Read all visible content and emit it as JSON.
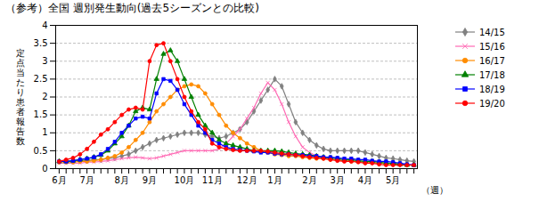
{
  "chart_data": {
    "type": "line",
    "title": "（参考）全国 週別発生動向(過去5シーズンとの比較)",
    "ylabel": "定点当たり患者報告数",
    "xlabel": "（週）",
    "categories": [
      "6月",
      null,
      null,
      null,
      "7月",
      null,
      null,
      null,
      null,
      "8月",
      null,
      null,
      null,
      "9月",
      null,
      null,
      null,
      null,
      "10月",
      null,
      null,
      null,
      "11月",
      null,
      null,
      null,
      null,
      "12月",
      null,
      null,
      null,
      "1月",
      null,
      null,
      null,
      null,
      "2月",
      null,
      null,
      null,
      "3月",
      null,
      null,
      null,
      "4月",
      null,
      null,
      null,
      "5月",
      null,
      null,
      null
    ],
    "ylim": [
      0,
      4
    ],
    "yticks": [
      0,
      0.5,
      1,
      1.5,
      2,
      2.5,
      3,
      3.5,
      4
    ],
    "grid": true,
    "legend": "right",
    "series": [
      {
        "name": "14/15",
        "color": "#808080",
        "marker": "diamond",
        "values": [
          0.2,
          0.2,
          0.2,
          0.22,
          0.22,
          0.25,
          0.25,
          0.28,
          0.3,
          0.35,
          0.4,
          0.5,
          0.6,
          0.7,
          0.8,
          0.85,
          0.9,
          0.95,
          1.0,
          1.0,
          1.0,
          0.95,
          0.9,
          0.85,
          0.9,
          1.0,
          1.1,
          1.3,
          1.6,
          1.9,
          2.2,
          2.5,
          2.3,
          1.8,
          1.3,
          1.0,
          0.8,
          0.65,
          0.55,
          0.5,
          0.5,
          0.5,
          0.5,
          0.5,
          0.45,
          0.4,
          0.35,
          0.3,
          0.28,
          0.25,
          0.22,
          0.2
        ]
      },
      {
        "name": "15/16",
        "color": "#FF69B4",
        "marker": "times",
        "values": [
          0.15,
          0.15,
          0.15,
          0.15,
          0.18,
          0.18,
          0.2,
          0.22,
          0.25,
          0.28,
          0.3,
          0.32,
          0.3,
          0.28,
          0.3,
          0.35,
          0.4,
          0.45,
          0.5,
          0.5,
          0.5,
          0.5,
          0.5,
          0.55,
          0.7,
          0.9,
          1.1,
          1.4,
          1.7,
          2.1,
          2.4,
          2.2,
          1.8,
          1.3,
          0.9,
          0.6,
          0.45,
          0.35,
          0.3,
          0.28,
          0.25,
          0.22,
          0.22,
          0.2,
          0.18,
          0.18,
          0.15,
          0.15,
          0.15,
          0.12,
          0.12,
          0.1
        ]
      },
      {
        "name": "16/17",
        "color": "#FF8C00",
        "marker": "circle",
        "values": [
          0.18,
          0.18,
          0.18,
          0.2,
          0.2,
          0.22,
          0.25,
          0.3,
          0.35,
          0.45,
          0.6,
          0.8,
          1.0,
          1.3,
          1.6,
          1.8,
          2.0,
          2.2,
          2.3,
          2.35,
          2.3,
          2.1,
          1.8,
          1.5,
          1.2,
          1.0,
          0.85,
          0.7,
          0.6,
          0.5,
          0.45,
          0.4,
          0.38,
          0.35,
          0.35,
          0.32,
          0.3,
          0.28,
          0.28,
          0.25,
          0.25,
          0.22,
          0.2,
          0.2,
          0.18,
          0.18,
          0.15,
          0.15,
          0.12,
          0.12,
          0.1,
          0.1
        ]
      },
      {
        "name": "17/18",
        "color": "#008000",
        "marker": "triangle",
        "values": [
          0.2,
          0.2,
          0.22,
          0.25,
          0.28,
          0.32,
          0.38,
          0.5,
          0.7,
          0.9,
          1.2,
          1.6,
          1.7,
          1.65,
          2.5,
          3.2,
          3.3,
          3.0,
          2.5,
          2.0,
          1.5,
          1.2,
          1.0,
          0.8,
          0.7,
          0.65,
          0.6,
          0.55,
          0.5,
          0.5,
          0.5,
          0.5,
          0.48,
          0.45,
          0.42,
          0.4,
          0.38,
          0.35,
          0.32,
          0.3,
          0.28,
          0.25,
          0.25,
          0.22,
          0.2,
          0.2,
          0.18,
          0.15,
          0.15,
          0.12,
          0.1,
          0.1
        ]
      },
      {
        "name": "18/19",
        "color": "#0000FF",
        "marker": "square",
        "values": [
          0.2,
          0.2,
          0.22,
          0.25,
          0.28,
          0.32,
          0.4,
          0.55,
          0.75,
          1.0,
          1.2,
          1.4,
          1.45,
          1.4,
          2.1,
          2.5,
          2.45,
          2.2,
          1.8,
          1.5,
          1.2,
          1.0,
          0.8,
          0.7,
          0.6,
          0.55,
          0.52,
          0.5,
          0.48,
          0.45,
          0.45,
          0.42,
          0.4,
          0.4,
          0.38,
          0.38,
          0.35,
          0.35,
          0.32,
          0.32,
          0.3,
          0.28,
          0.28,
          0.25,
          0.25,
          0.22,
          0.2,
          0.2,
          0.18,
          0.15,
          0.12,
          0.1
        ]
      },
      {
        "name": "19/20",
        "color": "#FF0000",
        "marker": "circle",
        "values": [
          0.2,
          0.25,
          0.3,
          0.4,
          0.55,
          0.75,
          0.95,
          1.1,
          1.3,
          1.5,
          1.65,
          1.7,
          1.65,
          3.0,
          3.45,
          3.5,
          3.0,
          2.5,
          2.0,
          1.6,
          1.3,
          1.1,
          0.7,
          0.6,
          0.55,
          0.52,
          0.5,
          0.5,
          0.5,
          0.5,
          0.48,
          0.45,
          0.42,
          0.4,
          0.38,
          0.35,
          0.32,
          0.3,
          0.28,
          0.25,
          0.22,
          0.2,
          0.2,
          0.18,
          0.15,
          0.15,
          0.12,
          0.1,
          0.1,
          0.1,
          0.1,
          0.1
        ]
      }
    ]
  }
}
